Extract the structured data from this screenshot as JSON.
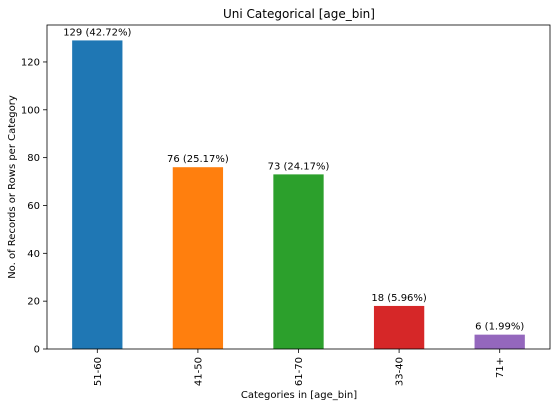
{
  "chart_data": {
    "type": "bar",
    "title": "Uni Categorical [age_bin]",
    "xlabel": "Categories in [age_bin]",
    "ylabel": "No. of Records or Rows per Category",
    "categories": [
      "51-60",
      "41-50",
      "61-70",
      "33-40",
      "71+"
    ],
    "values": [
      129,
      76,
      73,
      18,
      6
    ],
    "data_labels": [
      "129 (42.72%)",
      "76 (25.17%)",
      "73 (24.17%)",
      "18 (5.96%)",
      "6 (1.99%)"
    ],
    "colors": [
      "#1f77b4",
      "#ff7f0e",
      "#2ca02c",
      "#d62728",
      "#9467bd"
    ],
    "yticks": [
      0,
      20,
      40,
      60,
      80,
      100,
      120
    ],
    "ylim": [
      0,
      135.45
    ],
    "grid": false,
    "legend": "none"
  }
}
